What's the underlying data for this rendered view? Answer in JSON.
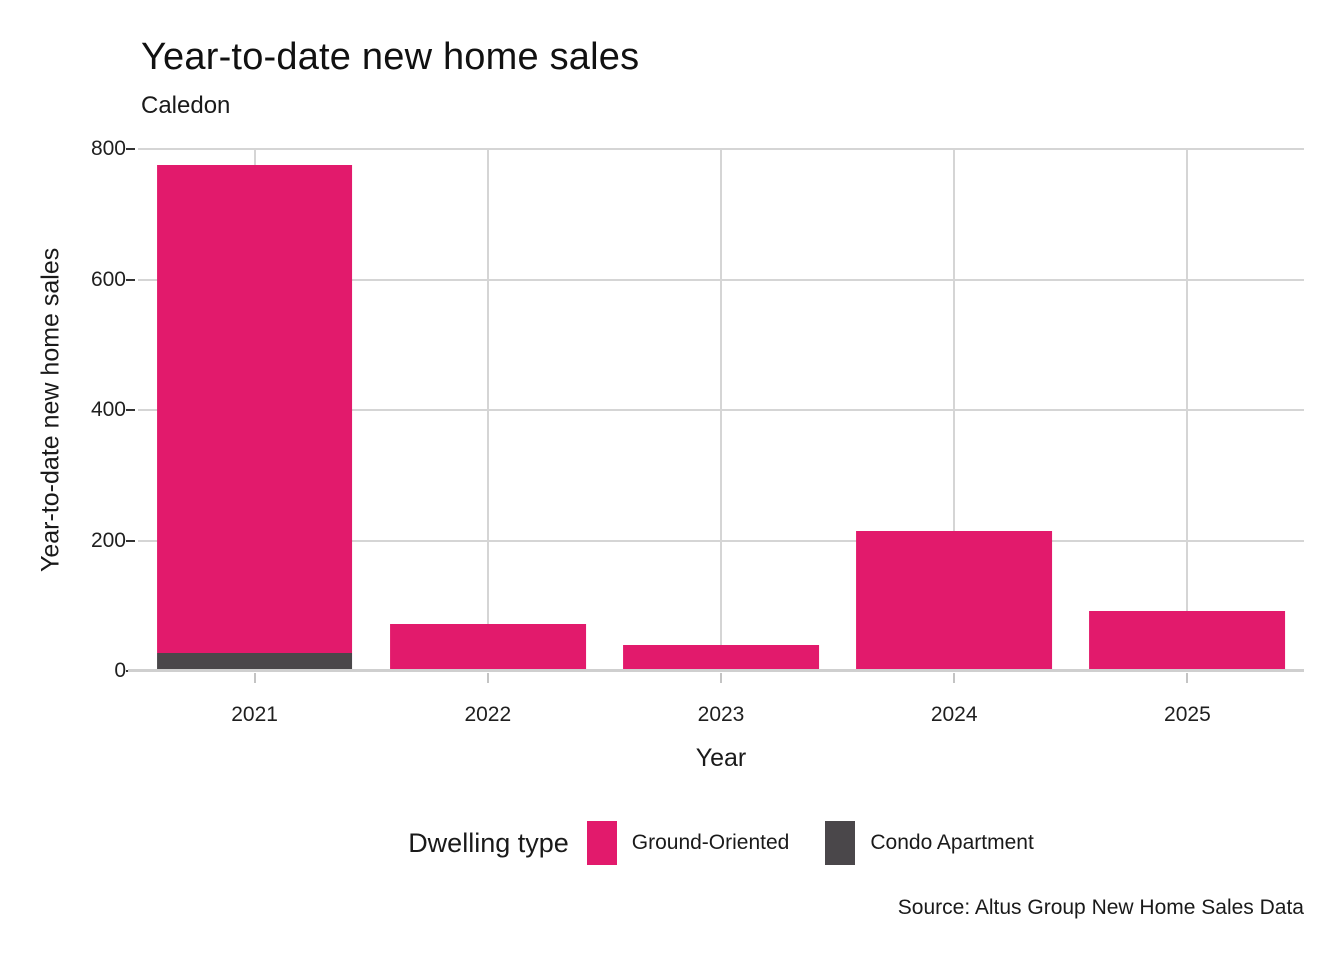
{
  "chart_data": {
    "type": "bar",
    "stacked": true,
    "title": "Year-to-date new home sales",
    "subtitle": "Caledon",
    "xlabel": "Year",
    "ylabel": "Year-to-date new home sales",
    "categories": [
      "2021",
      "2022",
      "2023",
      "2024",
      "2025"
    ],
    "series": [
      {
        "name": "Ground-Oriented",
        "color": "#E21A6C",
        "values": [
          747,
          70,
          40,
          215,
          92
        ]
      },
      {
        "name": "Condo Apartment",
        "color": "#4A474A",
        "values": [
          28,
          2,
          0,
          0,
          0
        ]
      }
    ],
    "stack_order_bottom_to_top": [
      "Condo Apartment",
      "Ground-Oriented"
    ],
    "ylim": [
      0,
      800
    ],
    "yticks": [
      0,
      200,
      400,
      600,
      800
    ],
    "grid": true,
    "legend_title": "Dwelling type",
    "legend_position": "bottom",
    "source": "Source: Altus Group New Home Sales Data",
    "colors": {
      "background": "#ffffff",
      "gridline": "#d5d5d5",
      "axis_line": "#cfcfcf",
      "text": "#1a1a1a"
    }
  }
}
